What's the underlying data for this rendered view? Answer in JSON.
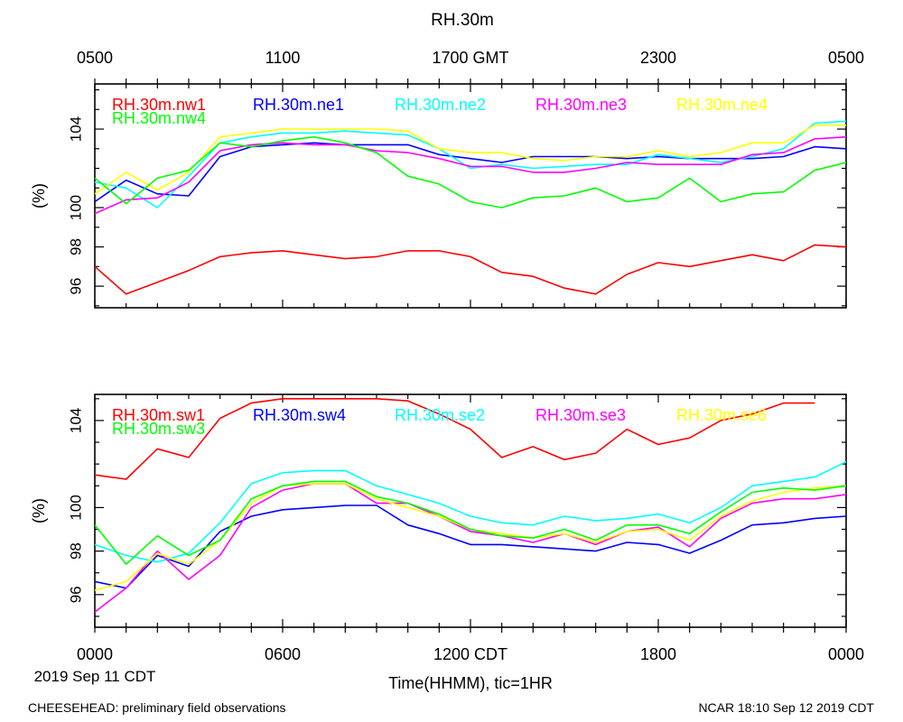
{
  "title": "RH.30m",
  "top_axis_labels": [
    "0500",
    "1100",
    "1700 GMT",
    "2300",
    "0500"
  ],
  "bottom_axis_labels": [
    "0000",
    "0600",
    "1200 CDT",
    "1800",
    "0000"
  ],
  "date_label": "2019 Sep 11 CDT",
  "xlabel": "Time(HHMM), tic=1HR",
  "footer_left": "CHEESEHEAD: preliminary field observations",
  "footer_right": "NCAR 18:10 Sep 12 2019 CDT",
  "chart_data": [
    {
      "type": "line",
      "panel": "upper",
      "ylabel": "(%)",
      "ylim": [
        94.9,
        106.3
      ],
      "yticks": [
        96,
        98,
        100,
        104
      ],
      "xlim": [
        0,
        24
      ],
      "x": [
        0,
        1,
        2,
        3,
        4,
        5,
        6,
        7,
        8,
        9,
        10,
        11,
        12,
        13,
        14,
        15,
        16,
        17,
        18,
        19,
        20,
        21,
        22,
        23,
        24
      ],
      "series": [
        {
          "name": "RH.30m.nw1",
          "color": "#ff0000",
          "values": [
            97.0,
            95.6,
            96.2,
            96.8,
            97.5,
            97.7,
            97.8,
            97.6,
            97.4,
            97.5,
            97.8,
            97.8,
            97.5,
            96.7,
            96.5,
            95.9,
            95.6,
            96.6,
            97.2,
            97.0,
            97.3,
            97.6,
            97.3,
            98.1,
            98.0
          ]
        },
        {
          "name": "RH.30m.ne1",
          "color": "#0000ff",
          "values": [
            100.3,
            101.4,
            100.7,
            100.6,
            102.6,
            103.1,
            103.2,
            103.3,
            103.2,
            103.2,
            103.2,
            102.7,
            102.5,
            102.3,
            102.6,
            102.6,
            102.6,
            102.5,
            102.6,
            102.5,
            102.5,
            102.5,
            102.6,
            103.1,
            103.0
          ]
        },
        {
          "name": "RH.30m.ne2",
          "color": "#00ffff",
          "values": [
            101.3,
            101.0,
            100.0,
            101.6,
            103.3,
            103.6,
            103.8,
            103.8,
            103.9,
            103.8,
            103.7,
            103.0,
            102.0,
            102.2,
            102.0,
            102.1,
            102.2,
            102.2,
            102.7,
            102.5,
            102.3,
            102.6,
            103.0,
            104.3,
            104.4
          ]
        },
        {
          "name": "RH.30m.ne3",
          "color": "#ff00ff",
          "values": [
            99.7,
            100.4,
            100.5,
            101.3,
            102.9,
            103.2,
            103.3,
            103.2,
            103.2,
            102.9,
            102.8,
            102.5,
            102.1,
            102.1,
            101.8,
            101.8,
            102.0,
            102.3,
            102.2,
            102.2,
            102.2,
            102.7,
            102.8,
            103.5,
            103.6
          ]
        },
        {
          "name": "RH.30m.ne4",
          "color": "#ffff00",
          "values": [
            100.7,
            101.8,
            100.9,
            101.8,
            103.6,
            103.8,
            104.0,
            104.0,
            104.0,
            104.0,
            103.9,
            103.0,
            102.8,
            102.8,
            102.5,
            102.4,
            102.6,
            102.6,
            102.9,
            102.6,
            102.8,
            103.3,
            103.3,
            104.2,
            104.2
          ]
        },
        {
          "name": "RH.30m.nw4",
          "color": "#00ff00",
          "values": [
            101.5,
            100.2,
            101.5,
            101.9,
            103.3,
            103.1,
            103.4,
            103.6,
            103.3,
            102.8,
            101.6,
            101.2,
            100.3,
            100.0,
            100.5,
            100.6,
            101.0,
            100.3,
            100.5,
            101.5,
            100.3,
            100.7,
            100.8,
            101.9,
            102.3
          ]
        }
      ]
    },
    {
      "type": "line",
      "panel": "lower",
      "ylabel": "(%)",
      "ylim": [
        94.5,
        105.2
      ],
      "yticks": [
        96,
        98,
        100,
        104
      ],
      "xlim": [
        0,
        24
      ],
      "x": [
        0,
        1,
        2,
        3,
        4,
        5,
        6,
        7,
        8,
        9,
        10,
        11,
        12,
        13,
        14,
        15,
        16,
        17,
        18,
        19,
        20,
        21,
        22,
        23,
        24
      ],
      "series": [
        {
          "name": "RH.30m.sw1",
          "color": "#ff0000",
          "values": [
            101.5,
            101.3,
            102.7,
            102.3,
            104.1,
            104.8,
            105.0,
            105.0,
            105.0,
            105.0,
            104.9,
            104.3,
            103.6,
            102.3,
            102.8,
            102.2,
            102.5,
            103.6,
            102.9,
            103.2,
            104.0,
            104.3,
            104.8,
            104.8,
            null
          ]
        },
        {
          "name": "RH.30m.sw4",
          "color": "#0000ff",
          "values": [
            96.6,
            96.3,
            97.8,
            97.3,
            98.9,
            99.6,
            99.9,
            100.0,
            100.1,
            100.1,
            99.2,
            98.8,
            98.3,
            98.3,
            98.2,
            98.1,
            98.0,
            98.4,
            98.3,
            97.9,
            98.5,
            99.2,
            99.3,
            99.5,
            99.6
          ]
        },
        {
          "name": "RH.30m.se2",
          "color": "#00ffff",
          "values": [
            98.3,
            97.8,
            97.5,
            97.9,
            99.3,
            101.1,
            101.6,
            101.7,
            101.7,
            101.0,
            100.6,
            100.2,
            99.6,
            99.3,
            99.2,
            99.6,
            99.4,
            99.5,
            99.7,
            99.3,
            100.0,
            101.0,
            101.2,
            101.4,
            102.1
          ]
        },
        {
          "name": "RH.30m.se3",
          "color": "#ff00ff",
          "values": [
            95.2,
            96.3,
            98.0,
            96.7,
            97.8,
            100.0,
            100.8,
            101.1,
            101.1,
            100.2,
            100.2,
            99.6,
            98.9,
            98.7,
            98.4,
            98.8,
            98.3,
            98.9,
            99.1,
            98.2,
            99.5,
            100.2,
            100.4,
            100.4,
            100.6
          ]
        },
        {
          "name": "RH.30m.se6",
          "color": "#ffff00",
          "values": [
            96.2,
            96.6,
            97.9,
            97.4,
            98.5,
            100.2,
            101.0,
            101.1,
            101.1,
            100.4,
            100.0,
            99.6,
            99.0,
            98.8,
            98.6,
            98.8,
            98.4,
            98.9,
            99.0,
            98.5,
            99.6,
            100.3,
            100.7,
            100.9,
            101.0
          ]
        },
        {
          "name": "RH.30m.sw3",
          "color": "#00ff00",
          "values": [
            99.2,
            97.4,
            98.7,
            97.8,
            98.5,
            100.4,
            101.0,
            101.2,
            101.2,
            100.5,
            100.2,
            99.7,
            99.0,
            98.7,
            98.6,
            99.0,
            98.5,
            99.2,
            99.2,
            98.8,
            99.8,
            100.7,
            100.9,
            100.8,
            101.0
          ]
        }
      ]
    }
  ]
}
